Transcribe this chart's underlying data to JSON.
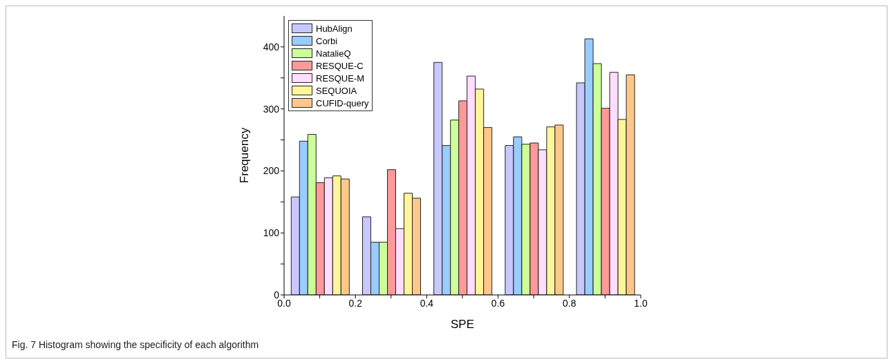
{
  "chart_data": {
    "type": "bar",
    "xlabel": "SPE",
    "ylabel": "Frequency",
    "annotations": [
      "Fig. 7 Histogram showing the specificity of each algorithm"
    ],
    "x": [
      0.1,
      0.3,
      0.5,
      0.7,
      0.9
    ],
    "xlim": [
      0,
      1
    ],
    "xticks": [
      {
        "value": 0,
        "label": "0.0"
      },
      {
        "value": 0.1,
        "label": null
      },
      {
        "value": 0.2,
        "label": "0.2"
      },
      {
        "value": 0.3,
        "label": null
      },
      {
        "value": 0.4,
        "label": "0.4"
      },
      {
        "value": 0.5,
        "label": null
      },
      {
        "value": 0.6,
        "label": "0.6"
      },
      {
        "value": 0.7,
        "label": null
      },
      {
        "value": 0.8,
        "label": "0.8"
      },
      {
        "value": 0.9,
        "label": null
      },
      {
        "value": 1,
        "label": "1.0"
      }
    ],
    "ylim": [
      0,
      450
    ],
    "yticks": [
      0,
      {
        "value": 50,
        "label": null
      },
      100,
      {
        "value": 150,
        "label": null
      },
      200,
      {
        "value": 250,
        "label": null
      },
      300,
      {
        "value": 350,
        "label": null
      },
      400
    ],
    "grid": false,
    "legend": "top left",
    "series": [
      {
        "name": "HubAlign",
        "color": "#c8c8ff",
        "values": [
          158,
          126,
          375,
          241,
          342
        ]
      },
      {
        "name": "Corbi",
        "color": "#99ccff",
        "values": [
          248,
          85,
          241,
          255,
          413
        ]
      },
      {
        "name": "NatalieQ",
        "color": "#ccff99",
        "values": [
          259,
          85,
          282,
          243,
          373
        ]
      },
      {
        "name": "RESQUE-C",
        "color": "#ff9999",
        "values": [
          181,
          202,
          313,
          245,
          301
        ]
      },
      {
        "name": "RESQUE-M",
        "color": "#ffddff",
        "values": [
          189,
          107,
          353,
          234,
          359
        ]
      },
      {
        "name": "SEQUOIA",
        "color": "#fff599",
        "values": [
          192,
          164,
          332,
          271,
          283
        ]
      },
      {
        "name": "CUFID-query",
        "color": "#ffc88a",
        "values": [
          187,
          156,
          270,
          274,
          355
        ]
      }
    ]
  }
}
